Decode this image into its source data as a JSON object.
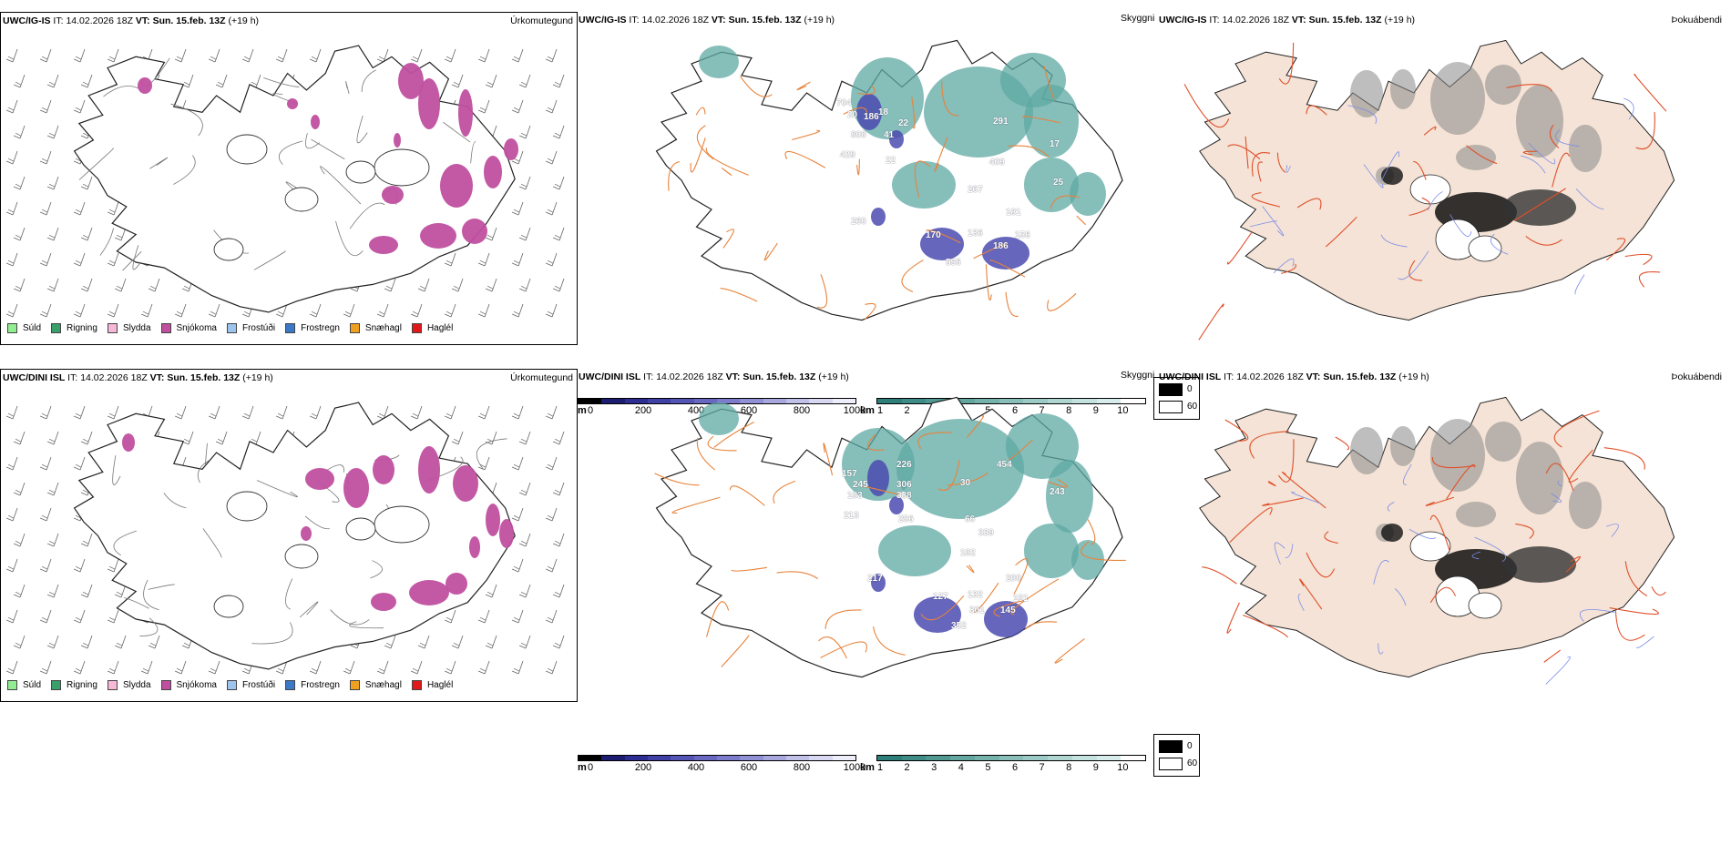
{
  "rows": [
    {
      "model": "UWC/IG-IS",
      "it_label": "IT:",
      "it_value": "14.02.2026 18Z",
      "vt_label": "VT:",
      "vt_value": "Sun. 15.feb. 13Z",
      "lead": "(+19 h)",
      "precip_title": "Úrkomutegund",
      "vis_title": "Skyggni",
      "fog_title": "Þokuábendi",
      "vis_labels": [
        "704",
        "18",
        "20",
        "186",
        "22",
        "808",
        "41",
        "429",
        "22",
        "291",
        "17",
        "409",
        "267",
        "25",
        "260",
        "181",
        "170",
        "136",
        "156",
        "186",
        "556"
      ]
    },
    {
      "model": "UWC/DINI ISL",
      "it_label": "IT:",
      "it_value": "14.02.2026 18Z",
      "vt_label": "VT:",
      "vt_value": "Sun. 15.feb. 13Z",
      "lead": "(+19 h)",
      "precip_title": "Úrkomutegund",
      "vis_title": "Skyggni",
      "fog_title": "Þokuábendi",
      "vis_labels": [
        "157",
        "226",
        "245",
        "306",
        "183",
        "388",
        "30",
        "454",
        "243",
        "213",
        "256",
        "66",
        "339",
        "182",
        "217",
        "200",
        "127",
        "132",
        "151",
        "301",
        "145",
        "352"
      ]
    }
  ],
  "precip_legend": [
    {
      "label": "Súld",
      "color": "#90ee90"
    },
    {
      "label": "Rigning",
      "color": "#3aa06b"
    },
    {
      "label": "Slydda",
      "color": "#f5b8d6"
    },
    {
      "label": "Snjókoma",
      "color": "#c04fa0"
    },
    {
      "label": "Frostúði",
      "color": "#9cc4ee"
    },
    {
      "label": "Frostregn",
      "color": "#3a78c8"
    },
    {
      "label": "Snæhagl",
      "color": "#f0a020"
    },
    {
      "label": "Haglél",
      "color": "#e01818"
    }
  ],
  "cloud_base_scale": {
    "unit": "m",
    "ticks": [
      "0",
      "200",
      "400",
      "600",
      "800",
      "1000"
    ],
    "colors": [
      "#000000",
      "#1c1c70",
      "#2e2e92",
      "#4040a6",
      "#5454b4",
      "#6868c0",
      "#7c7cca",
      "#9090d4",
      "#a8a8de",
      "#c0c0e8",
      "#d8d8f2",
      "#eeeefa"
    ]
  },
  "visibility_scale": {
    "unit": "km",
    "ticks": [
      "1",
      "2",
      "3",
      "4",
      "5",
      "6",
      "7",
      "8",
      "9",
      "10"
    ],
    "colors": [
      "#2e7f7a",
      "#3f8c86",
      "#519893",
      "#63a59f",
      "#76b2ac",
      "#89beb9",
      "#9ccac6",
      "#b0d6d2",
      "#c4e2df",
      "#d8edeb",
      "#ffffff"
    ]
  },
  "fog_scale": {
    "min_label": "0",
    "max_label": "60",
    "min_color": "#000000",
    "max_color": "#ffffff"
  },
  "colors": {
    "snow": "#c04fa0",
    "land_fog": "#f4e3d6",
    "roads": "#e8833a",
    "rivers": "#7a8ce8",
    "teal": "#5ea8a3",
    "blue": "#4b4bb0"
  }
}
